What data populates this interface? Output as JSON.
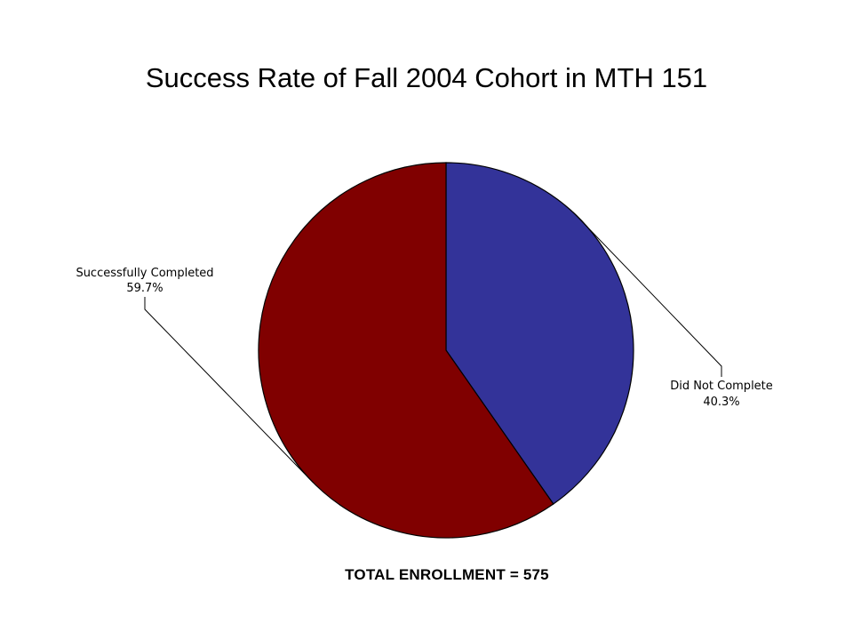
{
  "slide": {
    "title": "Success Rate of Fall 2004 Cohort in MTH 151",
    "footer": "TOTAL ENROLLMENT  = 575"
  },
  "chart_data": {
    "type": "pie",
    "title": "Success Rate of Fall 2004 Cohort in MTH 151",
    "categories": [
      "Did Not Complete",
      "Successfully Completed"
    ],
    "values": [
      40.3,
      59.7
    ],
    "labels": [
      "40.3%",
      "59.7%"
    ],
    "colors": [
      "#333399",
      "#800000"
    ],
    "start": "12 o'clock",
    "direction": "clockwise",
    "legend": "none",
    "total_enrollment": 575
  }
}
